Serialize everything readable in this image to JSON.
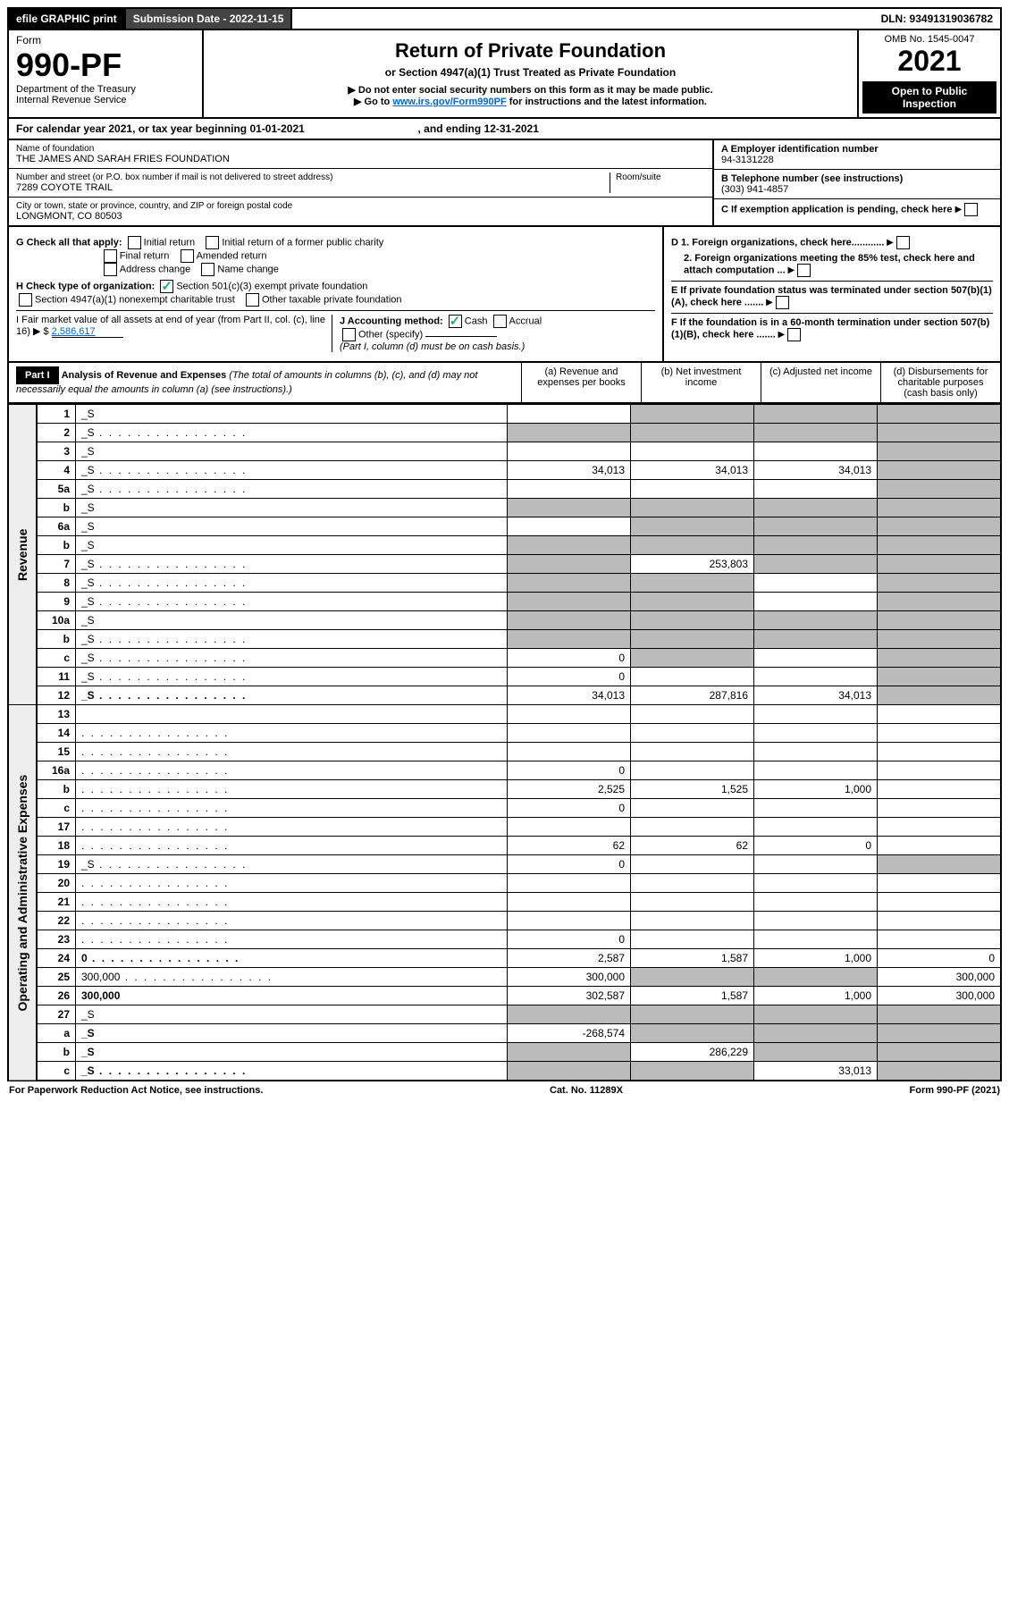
{
  "top": {
    "efile": "efile GRAPHIC print",
    "submission": "Submission Date - 2022-11-15",
    "dln": "DLN: 93491319036782"
  },
  "hdr": {
    "form_word": "Form",
    "form_num": "990-PF",
    "dept": "Department of the Treasury",
    "irs": "Internal Revenue Service",
    "title": "Return of Private Foundation",
    "subtitle": "or Section 4947(a)(1) Trust Treated as Private Foundation",
    "note1": "▶ Do not enter social security numbers on this form as it may be made public.",
    "note2_pre": "▶ Go to ",
    "note2_link": "www.irs.gov/Form990PF",
    "note2_post": " for instructions and the latest information.",
    "omb": "OMB No. 1545-0047",
    "year": "2021",
    "open_pub": "Open to Public Inspection"
  },
  "cal": {
    "text": "For calendar year 2021, or tax year beginning 01-01-2021",
    "ending": ", and ending 12-31-2021"
  },
  "info": {
    "name_lbl": "Name of foundation",
    "name": "THE JAMES AND SARAH FRIES FOUNDATION",
    "addr_lbl": "Number and street (or P.O. box number if mail is not delivered to street address)",
    "addr": "7289 COYOTE TRAIL",
    "room_lbl": "Room/suite",
    "city_lbl": "City or town, state or province, country, and ZIP or foreign postal code",
    "city": "LONGMONT, CO  80503",
    "A_lbl": "A Employer identification number",
    "A": "94-3131228",
    "B_lbl": "B Telephone number (see instructions)",
    "B": "(303) 941-4857",
    "C": "C If exemption application is pending, check here",
    "D1": "D 1. Foreign organizations, check here............",
    "D2": "2. Foreign organizations meeting the 85% test, check here and attach computation ...",
    "E": "E  If private foundation status was terminated under section 507(b)(1)(A), check here .......",
    "F": "F  If the foundation is in a 60-month termination under section 507(b)(1)(B), check here .......",
    "G": "G Check all that apply:",
    "G_items": [
      "Initial return",
      "Initial return of a former public charity",
      "Final return",
      "Amended return",
      "Address change",
      "Name change"
    ],
    "H": "H Check type of organization:",
    "H_501": "Section 501(c)(3) exempt private foundation",
    "H_4947": "Section 4947(a)(1) nonexempt charitable trust",
    "H_other": "Other taxable private foundation",
    "I_pre": "I Fair market value of all assets at end of year (from Part II, col. (c), line 16) ▶",
    "I_val": "2,586,617",
    "J": "J Accounting method:",
    "J_cash": "Cash",
    "J_acc": "Accrual",
    "J_other": "Other (specify)",
    "J_note": "(Part I, column (d) must be on cash basis.)"
  },
  "part1": {
    "label": "Part I",
    "title": "Analysis of Revenue and Expenses",
    "title_note": " (The total of amounts in columns (b), (c), and (d) may not necessarily equal the amounts in column (a) (see instructions).)",
    "colA": "(a)   Revenue and expenses per books",
    "colB": "(b)   Net investment income",
    "colC": "(c)   Adjusted net income",
    "colD": "(d)  Disbursements for charitable purposes (cash basis only)"
  },
  "sidebar": {
    "revenue": "Revenue",
    "oae": "Operating and Administrative Expenses"
  },
  "rows": [
    {
      "n": "1",
      "d": "_S",
      "a": "",
      "b": "_S",
      "c": "_S"
    },
    {
      "n": "2",
      "d": "_S",
      "dots": true,
      "a": "_S",
      "b": "_S",
      "c": "_S"
    },
    {
      "n": "3",
      "d": "_S",
      "a": "",
      "b": "",
      "c": ""
    },
    {
      "n": "4",
      "d": "_S",
      "dots": true,
      "a": "34,013",
      "b": "34,013",
      "c": "34,013"
    },
    {
      "n": "5a",
      "d": "_S",
      "dots": true,
      "a": "",
      "b": "",
      "c": ""
    },
    {
      "n": "b",
      "d": "_S",
      "a": "_S",
      "b": "_S",
      "c": "_S"
    },
    {
      "n": "6a",
      "d": "_S",
      "a": "",
      "b": "_S",
      "c": "_S"
    },
    {
      "n": "b",
      "d": "_S",
      "a": "_S",
      "b": "_S",
      "c": "_S"
    },
    {
      "n": "7",
      "d": "_S",
      "dots": true,
      "a": "_S",
      "b": "253,803",
      "c": "_S"
    },
    {
      "n": "8",
      "d": "_S",
      "dots": true,
      "a": "_S",
      "b": "_S",
      "c": ""
    },
    {
      "n": "9",
      "d": "_S",
      "dots": true,
      "a": "_S",
      "b": "_S",
      "c": ""
    },
    {
      "n": "10a",
      "d": "_S",
      "a": "_S",
      "b": "_S",
      "c": "_S"
    },
    {
      "n": "b",
      "d": "_S",
      "dots": true,
      "a": "_S",
      "b": "_S",
      "c": "_S"
    },
    {
      "n": "c",
      "d": "_S",
      "dots": true,
      "a": "0",
      "b": "_S",
      "c": ""
    },
    {
      "n": "11",
      "d": "_S",
      "dots": true,
      "a": "0",
      "b": "",
      "c": ""
    },
    {
      "n": "12",
      "d": "_S",
      "dots": true,
      "bold": true,
      "a": "34,013",
      "b": "287,816",
      "c": "34,013"
    },
    {
      "n": "13",
      "d": "",
      "a": "",
      "b": "",
      "c": ""
    },
    {
      "n": "14",
      "d": "",
      "dots": true,
      "a": "",
      "b": "",
      "c": ""
    },
    {
      "n": "15",
      "d": "",
      "dots": true,
      "a": "",
      "b": "",
      "c": ""
    },
    {
      "n": "16a",
      "d": "",
      "dots": true,
      "a": "0",
      "b": "",
      "c": ""
    },
    {
      "n": "b",
      "d": "",
      "dots": true,
      "a": "2,525",
      "b": "1,525",
      "c": "1,000"
    },
    {
      "n": "c",
      "d": "",
      "dots": true,
      "a": "0",
      "b": "",
      "c": ""
    },
    {
      "n": "17",
      "d": "",
      "dots": true,
      "a": "",
      "b": "",
      "c": ""
    },
    {
      "n": "18",
      "d": "",
      "dots": true,
      "a": "62",
      "b": "62",
      "c": "0"
    },
    {
      "n": "19",
      "d": "_S",
      "dots": true,
      "a": "0",
      "b": "",
      "c": ""
    },
    {
      "n": "20",
      "d": "",
      "dots": true,
      "a": "",
      "b": "",
      "c": ""
    },
    {
      "n": "21",
      "d": "",
      "dots": true,
      "a": "",
      "b": "",
      "c": ""
    },
    {
      "n": "22",
      "d": "",
      "dots": true,
      "a": "",
      "b": "",
      "c": ""
    },
    {
      "n": "23",
      "d": "",
      "dots": true,
      "a": "0",
      "b": "",
      "c": ""
    },
    {
      "n": "24",
      "d": "0",
      "dots": true,
      "bold": true,
      "a": "2,587",
      "b": "1,587",
      "c": "1,000"
    },
    {
      "n": "25",
      "d": "300,000",
      "dots": true,
      "a": "300,000",
      "b": "_S",
      "c": "_S"
    },
    {
      "n": "26",
      "d": "300,000",
      "bold": true,
      "a": "302,587",
      "b": "1,587",
      "c": "1,000"
    },
    {
      "n": "27",
      "d": "_S",
      "a": "_S",
      "b": "_S",
      "c": "_S"
    },
    {
      "n": "a",
      "d": "_S",
      "bold": true,
      "a": "-268,574",
      "b": "_S",
      "c": "_S"
    },
    {
      "n": "b",
      "d": "_S",
      "bold": true,
      "a": "_S",
      "b": "286,229",
      "c": "_S"
    },
    {
      "n": "c",
      "d": "_S",
      "dots": true,
      "bold": true,
      "a": "_S",
      "b": "_S",
      "c": "33,013"
    }
  ],
  "footer": {
    "left": "For Paperwork Reduction Act Notice, see instructions.",
    "mid": "Cat. No. 11289X",
    "right": "Form 990-PF (2021)"
  }
}
